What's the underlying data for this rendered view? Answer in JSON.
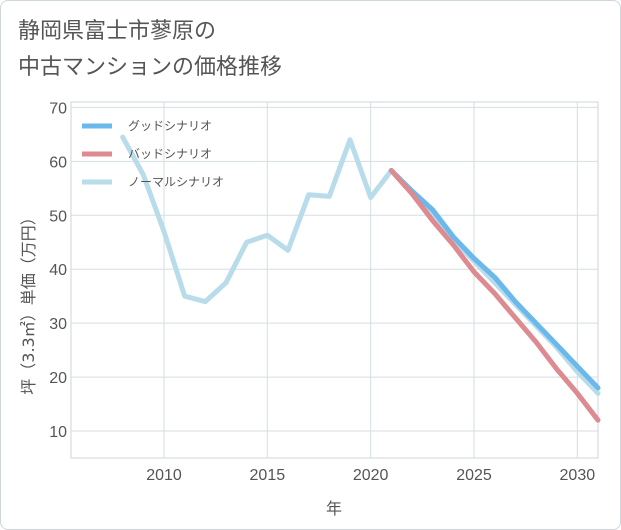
{
  "chart_data": {
    "type": "line",
    "title_lines": [
      "静岡県富士市蓼原の",
      "中古マンションの価格推移"
    ],
    "xlabel": "年",
    "ylabel": "坪（3.3㎡）単価（万円）",
    "xlim": [
      2005.5,
      2031
    ],
    "ylim": [
      5,
      71
    ],
    "x_ticks": [
      2010,
      2015,
      2020,
      2025,
      2030
    ],
    "y_ticks": [
      10,
      20,
      30,
      40,
      50,
      60,
      70
    ],
    "grid": true,
    "legend_position": "top-left",
    "series": [
      {
        "name": "グッドシナリオ",
        "color": "#6bb8ec",
        "x": [
          2021,
          2022,
          2023,
          2024,
          2025,
          2026,
          2027,
          2028,
          2029,
          2030,
          2031
        ],
        "y": [
          58.3,
          54.5,
          51.0,
          46.0,
          42.0,
          38.5,
          34.0,
          30.0,
          26.0,
          22.0,
          18.0
        ]
      },
      {
        "name": "バッドシナリオ",
        "color": "#dd8a90",
        "x": [
          2021,
          2022,
          2023,
          2024,
          2025,
          2026,
          2027,
          2028,
          2029,
          2030,
          2031
        ],
        "y": [
          58.3,
          54.0,
          49.0,
          44.5,
          39.5,
          35.5,
          31.0,
          26.5,
          21.5,
          17.0,
          12.0
        ]
      },
      {
        "name": "ノーマルシナリオ",
        "color": "#b8dce9",
        "x": [
          2008,
          2009,
          2010,
          2011,
          2012,
          2013,
          2014,
          2015,
          2016,
          2017,
          2018,
          2019,
          2020,
          2021,
          2022,
          2023,
          2024,
          2025,
          2026,
          2027,
          2028,
          2029,
          2030,
          2031
        ],
        "y": [
          64.5,
          57.5,
          47.0,
          35.0,
          34.0,
          37.5,
          45.0,
          46.3,
          43.5,
          53.8,
          53.5,
          64.0,
          53.3,
          58.3,
          54.5,
          50.5,
          45.5,
          41.5,
          37.5,
          33.5,
          29.5,
          25.5,
          21.0,
          17.0
        ]
      }
    ]
  }
}
